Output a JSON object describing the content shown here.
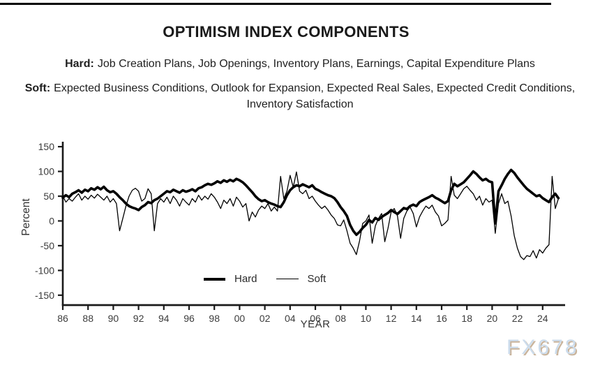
{
  "header": {
    "title": "OPTIMISM INDEX COMPONENTS",
    "hard_label": "Hard:",
    "hard_text": "Job Creation Plans, Job Openings, Inventory Plans, Earnings, Capital Expenditure Plans",
    "soft_label": "Soft:",
    "soft_text": "Expected Business Conditions, Outlook for Expansion, Expected Real Sales, Expected Credit Conditions, Inventory Satisfaction"
  },
  "watermark": "FX678",
  "colors": {
    "line": "#000000",
    "axis": "#1a1a1a",
    "tick_text": "#3c3c3c",
    "watermark_fill": "#ccdcec",
    "watermark_shadow": "#c9b49c"
  },
  "chart_data": {
    "type": "line",
    "title": "OPTIMISM INDEX COMPONENTS",
    "xlabel": "YEAR",
    "ylabel": "Percent",
    "ylim": [
      -150,
      150
    ],
    "grid": false,
    "legend_position": "inside-bottom-center",
    "y_ticks": [
      150,
      100,
      50,
      0,
      -50,
      -100,
      -150
    ],
    "x_ticks": [
      {
        "label": "86",
        "year": 1986
      },
      {
        "label": "88",
        "year": 1988
      },
      {
        "label": "90",
        "year": 1990
      },
      {
        "label": "92",
        "year": 1992
      },
      {
        "label": "94",
        "year": 1994
      },
      {
        "label": "96",
        "year": 1996
      },
      {
        "label": "98",
        "year": 1998
      },
      {
        "label": "00",
        "year": 2000
      },
      {
        "label": "02",
        "year": 2002
      },
      {
        "label": "04",
        "year": 2004
      },
      {
        "label": "06",
        "year": 2006
      },
      {
        "label": "08",
        "year": 2008
      },
      {
        "label": "10",
        "year": 2010
      },
      {
        "label": "12",
        "year": 2012
      },
      {
        "label": "14",
        "year": 2014
      },
      {
        "label": "16",
        "year": 2016
      },
      {
        "label": "18",
        "year": 2018
      },
      {
        "label": "20",
        "year": 2020
      },
      {
        "label": "22",
        "year": 2022
      },
      {
        "label": "24",
        "year": 2024
      }
    ],
    "x_start": 1986,
    "x_step": 0.25,
    "legend": [
      {
        "name": "Hard",
        "thickness": "thick"
      },
      {
        "name": "Soft",
        "thickness": "thin"
      }
    ],
    "series": [
      {
        "name": "Hard",
        "thickness": "thick",
        "values": [
          47,
          52,
          48,
          55,
          58,
          62,
          57,
          63,
          60,
          66,
          63,
          68,
          64,
          69,
          62,
          58,
          60,
          55,
          48,
          42,
          35,
          30,
          27,
          25,
          22,
          28,
          32,
          38,
          36,
          42,
          45,
          50,
          55,
          60,
          58,
          63,
          60,
          57,
          62,
          59,
          61,
          64,
          60,
          66,
          68,
          72,
          75,
          73,
          76,
          80,
          77,
          82,
          79,
          83,
          80,
          85,
          82,
          78,
          72,
          65,
          58,
          50,
          44,
          40,
          42,
          38,
          35,
          33,
          30,
          28,
          38,
          52,
          62,
          68,
          72,
          70,
          74,
          71,
          68,
          72,
          65,
          62,
          58,
          55,
          52,
          50,
          46,
          38,
          28,
          20,
          10,
          -8,
          -20,
          -28,
          -22,
          -14,
          -8,
          2,
          -3,
          6,
          2,
          8,
          12,
          16,
          22,
          18,
          14,
          20,
          26,
          24,
          30,
          33,
          30,
          38,
          42,
          45,
          48,
          52,
          47,
          44,
          40,
          36,
          40,
          62,
          75,
          70,
          74,
          78,
          85,
          92,
          100,
          95,
          88,
          82,
          85,
          80,
          78,
          -5,
          60,
          72,
          85,
          95,
          103,
          97,
          88,
          80,
          72,
          65,
          60,
          55,
          50,
          52,
          46,
          42,
          38,
          48,
          55,
          46
        ]
      },
      {
        "name": "Soft",
        "thickness": "thin",
        "values": [
          50,
          38,
          45,
          40,
          48,
          55,
          42,
          50,
          44,
          52,
          46,
          54,
          48,
          42,
          50,
          38,
          45,
          35,
          -20,
          5,
          30,
          50,
          62,
          66,
          60,
          40,
          45,
          65,
          55,
          -20,
          35,
          45,
          38,
          48,
          35,
          50,
          42,
          30,
          45,
          38,
          32,
          45,
          38,
          52,
          42,
          50,
          44,
          55,
          48,
          38,
          25,
          42,
          35,
          45,
          30,
          48,
          40,
          28,
          35,
          0,
          18,
          8,
          22,
          30,
          25,
          35,
          20,
          28,
          20,
          90,
          45,
          60,
          92,
          68,
          99,
          60,
          55,
          62,
          45,
          50,
          40,
          32,
          25,
          30,
          22,
          12,
          5,
          -8,
          -10,
          2,
          -20,
          -45,
          -55,
          -68,
          -40,
          -5,
          0,
          12,
          -45,
          -10,
          5,
          15,
          -42,
          -15,
          18,
          25,
          10,
          -35,
          5,
          20,
          28,
          15,
          -12,
          8,
          20,
          30,
          25,
          32,
          18,
          10,
          -10,
          -5,
          2,
          90,
          52,
          45,
          55,
          65,
          70,
          62,
          55,
          42,
          50,
          32,
          45,
          38,
          42,
          -25,
          35,
          55,
          35,
          40,
          10,
          -30,
          -55,
          -72,
          -78,
          -70,
          -72,
          -60,
          -75,
          -58,
          -65,
          -55,
          -48,
          90,
          25,
          45
        ]
      }
    ]
  }
}
